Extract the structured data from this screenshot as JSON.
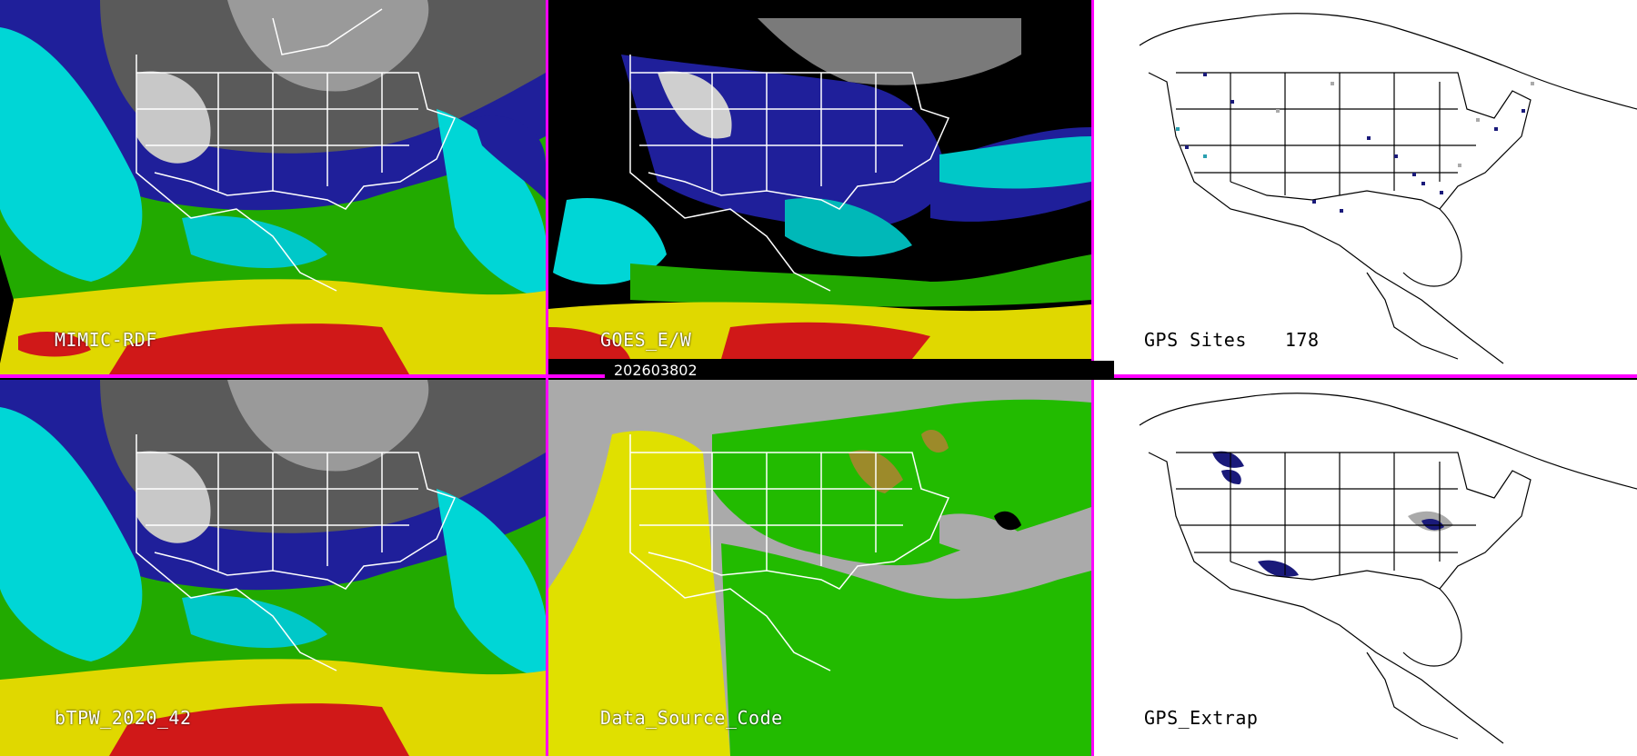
{
  "panels": {
    "top_left": {
      "label": "MIMIC-RDF"
    },
    "top_middle": {
      "label": "GOES_E/W"
    },
    "top_right": {
      "label": "GPS Sites",
      "count": "178"
    },
    "bottom_left": {
      "label": "bTPW_2020_42"
    },
    "bottom_middle": {
      "label": "Data_Source_Code"
    },
    "bottom_right": {
      "label": "GPS_Extrap"
    }
  },
  "timestamp": "202603802",
  "colors": {
    "divider": "#ff00ff",
    "map_outline": "#ffffff",
    "gps_site_primary": "#1a1a7a",
    "gps_site_secondary": "#aaaaaa",
    "gps_site_tertiary": "#2aa0b0",
    "source_yellow": "#e0e000",
    "source_green": "#22bb00",
    "source_gray": "#aaaaaa",
    "source_brown": "#9c8a2a"
  },
  "legend_scale": [
    "#cccccc",
    "#1f1f9a",
    "#00d8d8",
    "#22bb00",
    "#e0d800",
    "#d02020"
  ]
}
